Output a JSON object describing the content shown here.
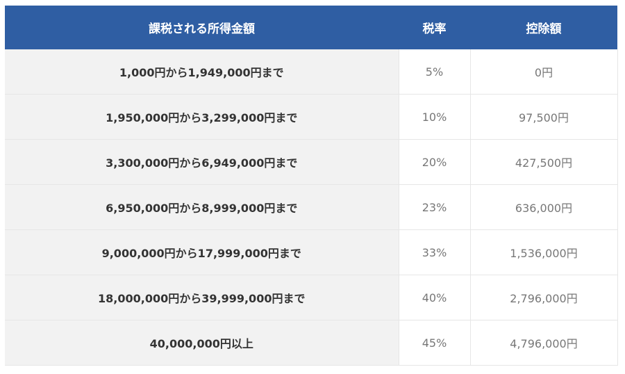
{
  "table": {
    "headers": {
      "income": "課税される所得金額",
      "rate": "税率",
      "deduction": "控除額"
    },
    "rows": [
      {
        "income": "1,000円から1,949,000円まで",
        "rate": "5%",
        "deduction": "0円"
      },
      {
        "income": "1,950,000円から3,299,000円まで",
        "rate": "10%",
        "deduction": "97,500円"
      },
      {
        "income": "3,300,000円から6,949,000円まで",
        "rate": "20%",
        "deduction": "427,500円"
      },
      {
        "income": "6,950,000円から8,999,000円まで",
        "rate": "23%",
        "deduction": "636,000円"
      },
      {
        "income": "9,000,000円から17,999,000円まで",
        "rate": "33%",
        "deduction": "1,536,000円"
      },
      {
        "income": "18,000,000円から39,999,000円まで",
        "rate": "40%",
        "deduction": "2,796,000円"
      },
      {
        "income": "40,000,000円以上",
        "rate": "45%",
        "deduction": "4,796,000円"
      }
    ]
  },
  "colors": {
    "header_bg": "#2f5ea3",
    "income_cell_bg": "#f2f2f2"
  }
}
